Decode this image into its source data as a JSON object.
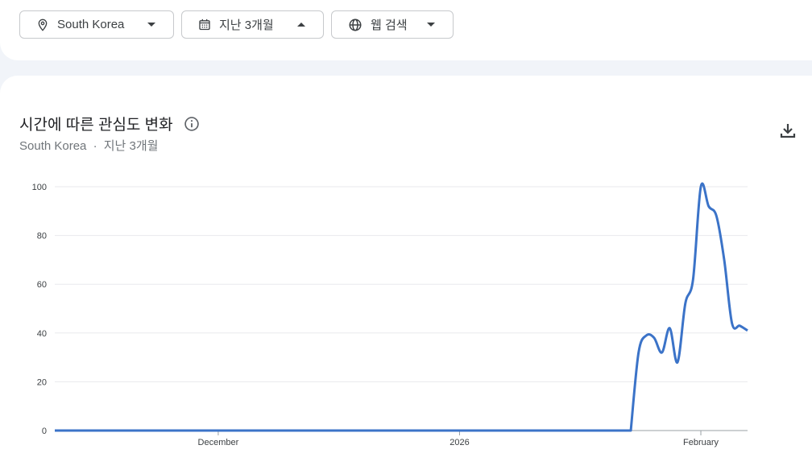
{
  "filters": {
    "location": "South Korea",
    "period": "지난 3개월",
    "search_type": "웹 검색"
  },
  "card": {
    "title": "시간에 따른 관심도 변화",
    "subtitle_location": "South Korea",
    "subtitle_sep": "·",
    "subtitle_period": "지난 3개월"
  },
  "colors": {
    "line": "#3b73c8",
    "grid": "#e8eaed"
  },
  "chart_data": {
    "type": "line",
    "title": "",
    "xlabel": "",
    "ylabel": "",
    "ylim": [
      0,
      100
    ],
    "grid": true,
    "yticks": [
      0,
      20,
      40,
      60,
      80,
      100
    ],
    "xticks": [
      {
        "label": "December",
        "date": "2025-12-01"
      },
      {
        "label": "2026",
        "date": "2026-01-01"
      },
      {
        "label": "February",
        "date": "2026-02-01"
      }
    ],
    "start": "2025-11-10",
    "end": "2026-02-07",
    "series": [
      {
        "points": [
          [
            "2026-01-23",
            0
          ],
          [
            "2026-01-24",
            32
          ],
          [
            "2026-01-25",
            39
          ],
          [
            "2026-01-26",
            38
          ],
          [
            "2026-01-27",
            32
          ],
          [
            "2026-01-28",
            42
          ],
          [
            "2026-01-29",
            28
          ],
          [
            "2026-01-30",
            52
          ],
          [
            "2026-01-31",
            62
          ],
          [
            "2026-02-01",
            100
          ],
          [
            "2026-02-02",
            92
          ],
          [
            "2026-02-03",
            88
          ],
          [
            "2026-02-04",
            70
          ],
          [
            "2026-02-05",
            44
          ],
          [
            "2026-02-06",
            43
          ],
          [
            "2026-02-07",
            41
          ]
        ],
        "zero_before": "2026-01-23"
      }
    ]
  }
}
